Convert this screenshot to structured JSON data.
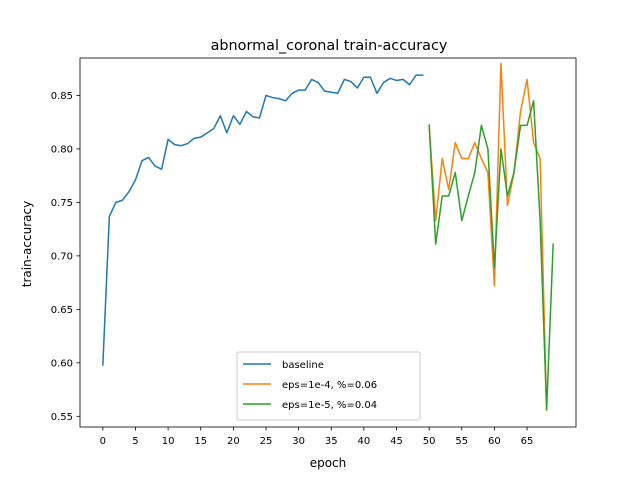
{
  "chart_data": {
    "type": "line",
    "title": "abnormal_coronal train-accuracy",
    "xlabel": "epoch",
    "ylabel": "train-accuracy",
    "xlim": [
      -3.5,
      72.5
    ],
    "ylim": [
      0.54,
      0.885
    ],
    "xticks": [
      0,
      5,
      10,
      15,
      20,
      25,
      30,
      35,
      40,
      45,
      50,
      55,
      60,
      65
    ],
    "yticks": [
      0.55,
      0.6,
      0.65,
      0.7,
      0.75,
      0.8,
      0.85
    ],
    "ytick_labels": [
      "0.55",
      "0.60",
      "0.65",
      "0.70",
      "0.75",
      "0.80",
      "0.85"
    ],
    "grid": false,
    "legend_position": "lower center",
    "series": [
      {
        "name": "baseline",
        "color": "#1f77b4",
        "x": [
          0,
          1,
          2,
          3,
          4,
          5,
          6,
          7,
          8,
          9,
          10,
          11,
          12,
          13,
          14,
          15,
          16,
          17,
          18,
          19,
          20,
          21,
          22,
          23,
          24,
          25,
          26,
          27,
          28,
          29,
          30,
          31,
          32,
          33,
          34,
          35,
          36,
          37,
          38,
          39,
          40,
          41,
          42,
          43,
          44,
          45,
          46,
          47,
          48,
          49
        ],
        "y": [
          0.598,
          0.737,
          0.75,
          0.752,
          0.76,
          0.771,
          0.789,
          0.792,
          0.784,
          0.781,
          0.809,
          0.804,
          0.803,
          0.805,
          0.81,
          0.811,
          0.815,
          0.819,
          0.831,
          0.815,
          0.831,
          0.823,
          0.835,
          0.83,
          0.829,
          0.85,
          0.848,
          0.847,
          0.845,
          0.852,
          0.855,
          0.855,
          0.865,
          0.862,
          0.854,
          0.853,
          0.852,
          0.865,
          0.863,
          0.857,
          0.867,
          0.867,
          0.852,
          0.862,
          0.866,
          0.864,
          0.865,
          0.86,
          0.869,
          0.869
        ]
      },
      {
        "name": "eps=1e-4, %=0.06",
        "color": "#ff7f0e",
        "x": [
          50,
          51,
          52,
          53,
          54,
          55,
          56,
          57,
          58,
          59,
          60,
          61,
          62,
          63,
          64,
          65,
          66,
          67,
          68
        ],
        "y": [
          0.822,
          0.733,
          0.791,
          0.762,
          0.806,
          0.791,
          0.791,
          0.806,
          0.791,
          0.778,
          0.672,
          0.88,
          0.747,
          0.778,
          0.835,
          0.865,
          0.806,
          0.791,
          0.556
        ]
      },
      {
        "name": "eps=1e-5, %=0.04",
        "color": "#2ca02c",
        "x": [
          50,
          51,
          52,
          53,
          54,
          55,
          56,
          57,
          58,
          59,
          60,
          61,
          62,
          63,
          64,
          65,
          66,
          67,
          68,
          69
        ],
        "y": [
          0.822,
          0.711,
          0.756,
          0.756,
          0.778,
          0.733,
          0.756,
          0.778,
          0.822,
          0.8,
          0.689,
          0.8,
          0.756,
          0.778,
          0.822,
          0.822,
          0.845,
          0.733,
          0.556,
          0.711
        ]
      }
    ]
  }
}
